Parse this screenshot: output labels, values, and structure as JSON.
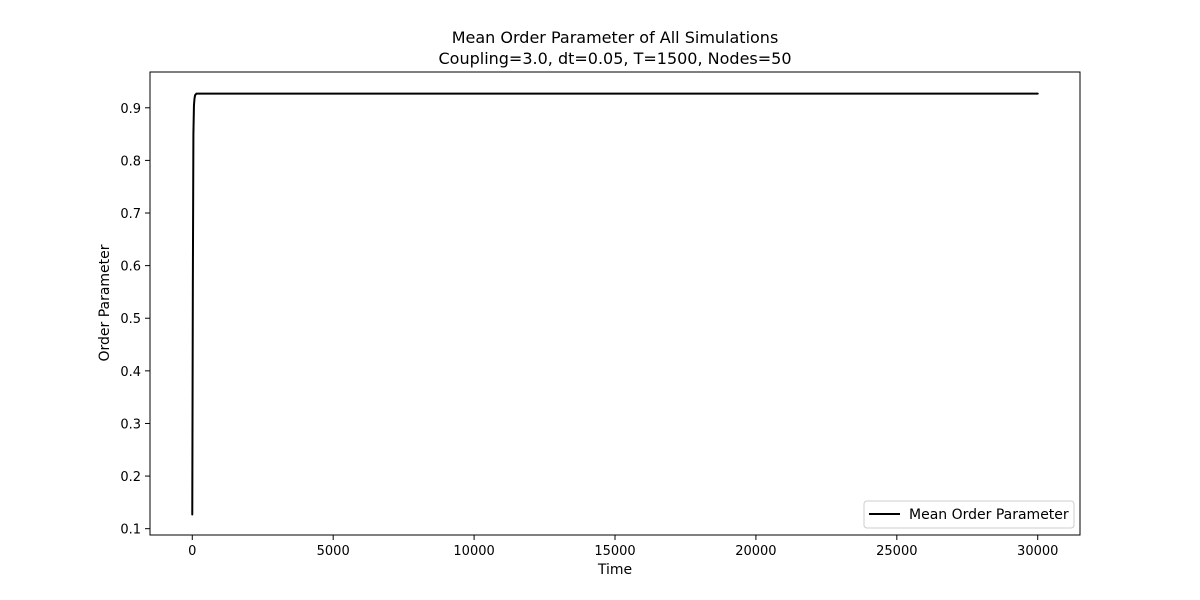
{
  "chart_data": {
    "type": "line",
    "title": "Mean Order Parameter of All Simulations",
    "subtitle": "Coupling=3.0, dt=0.05, T=1500, Nodes=50",
    "xlabel": "Time",
    "ylabel": "Order Parameter",
    "xlim": [
      -1500,
      31500
    ],
    "ylim": [
      0.088,
      0.968
    ],
    "xticks": [
      0,
      5000,
      10000,
      15000,
      20000,
      25000,
      30000
    ],
    "yticks": [
      0.1,
      0.2,
      0.3,
      0.4,
      0.5,
      0.6,
      0.7,
      0.8,
      0.9
    ],
    "grid": false,
    "legend_position": "lower right",
    "series": [
      {
        "name": "Mean Order Parameter",
        "color": "#000000",
        "x": [
          0,
          20,
          40,
          60,
          80,
          100,
          150,
          200,
          300,
          500,
          1000,
          2000,
          3000,
          5000,
          7500,
          10000,
          12500,
          15000,
          17500,
          20000,
          22500,
          25000,
          27500,
          30000
        ],
        "y": [
          0.127,
          0.56,
          0.85,
          0.905,
          0.918,
          0.924,
          0.927,
          0.927,
          0.927,
          0.927,
          0.927,
          0.927,
          0.927,
          0.927,
          0.927,
          0.927,
          0.927,
          0.927,
          0.927,
          0.927,
          0.927,
          0.927,
          0.927,
          0.927
        ]
      }
    ]
  }
}
